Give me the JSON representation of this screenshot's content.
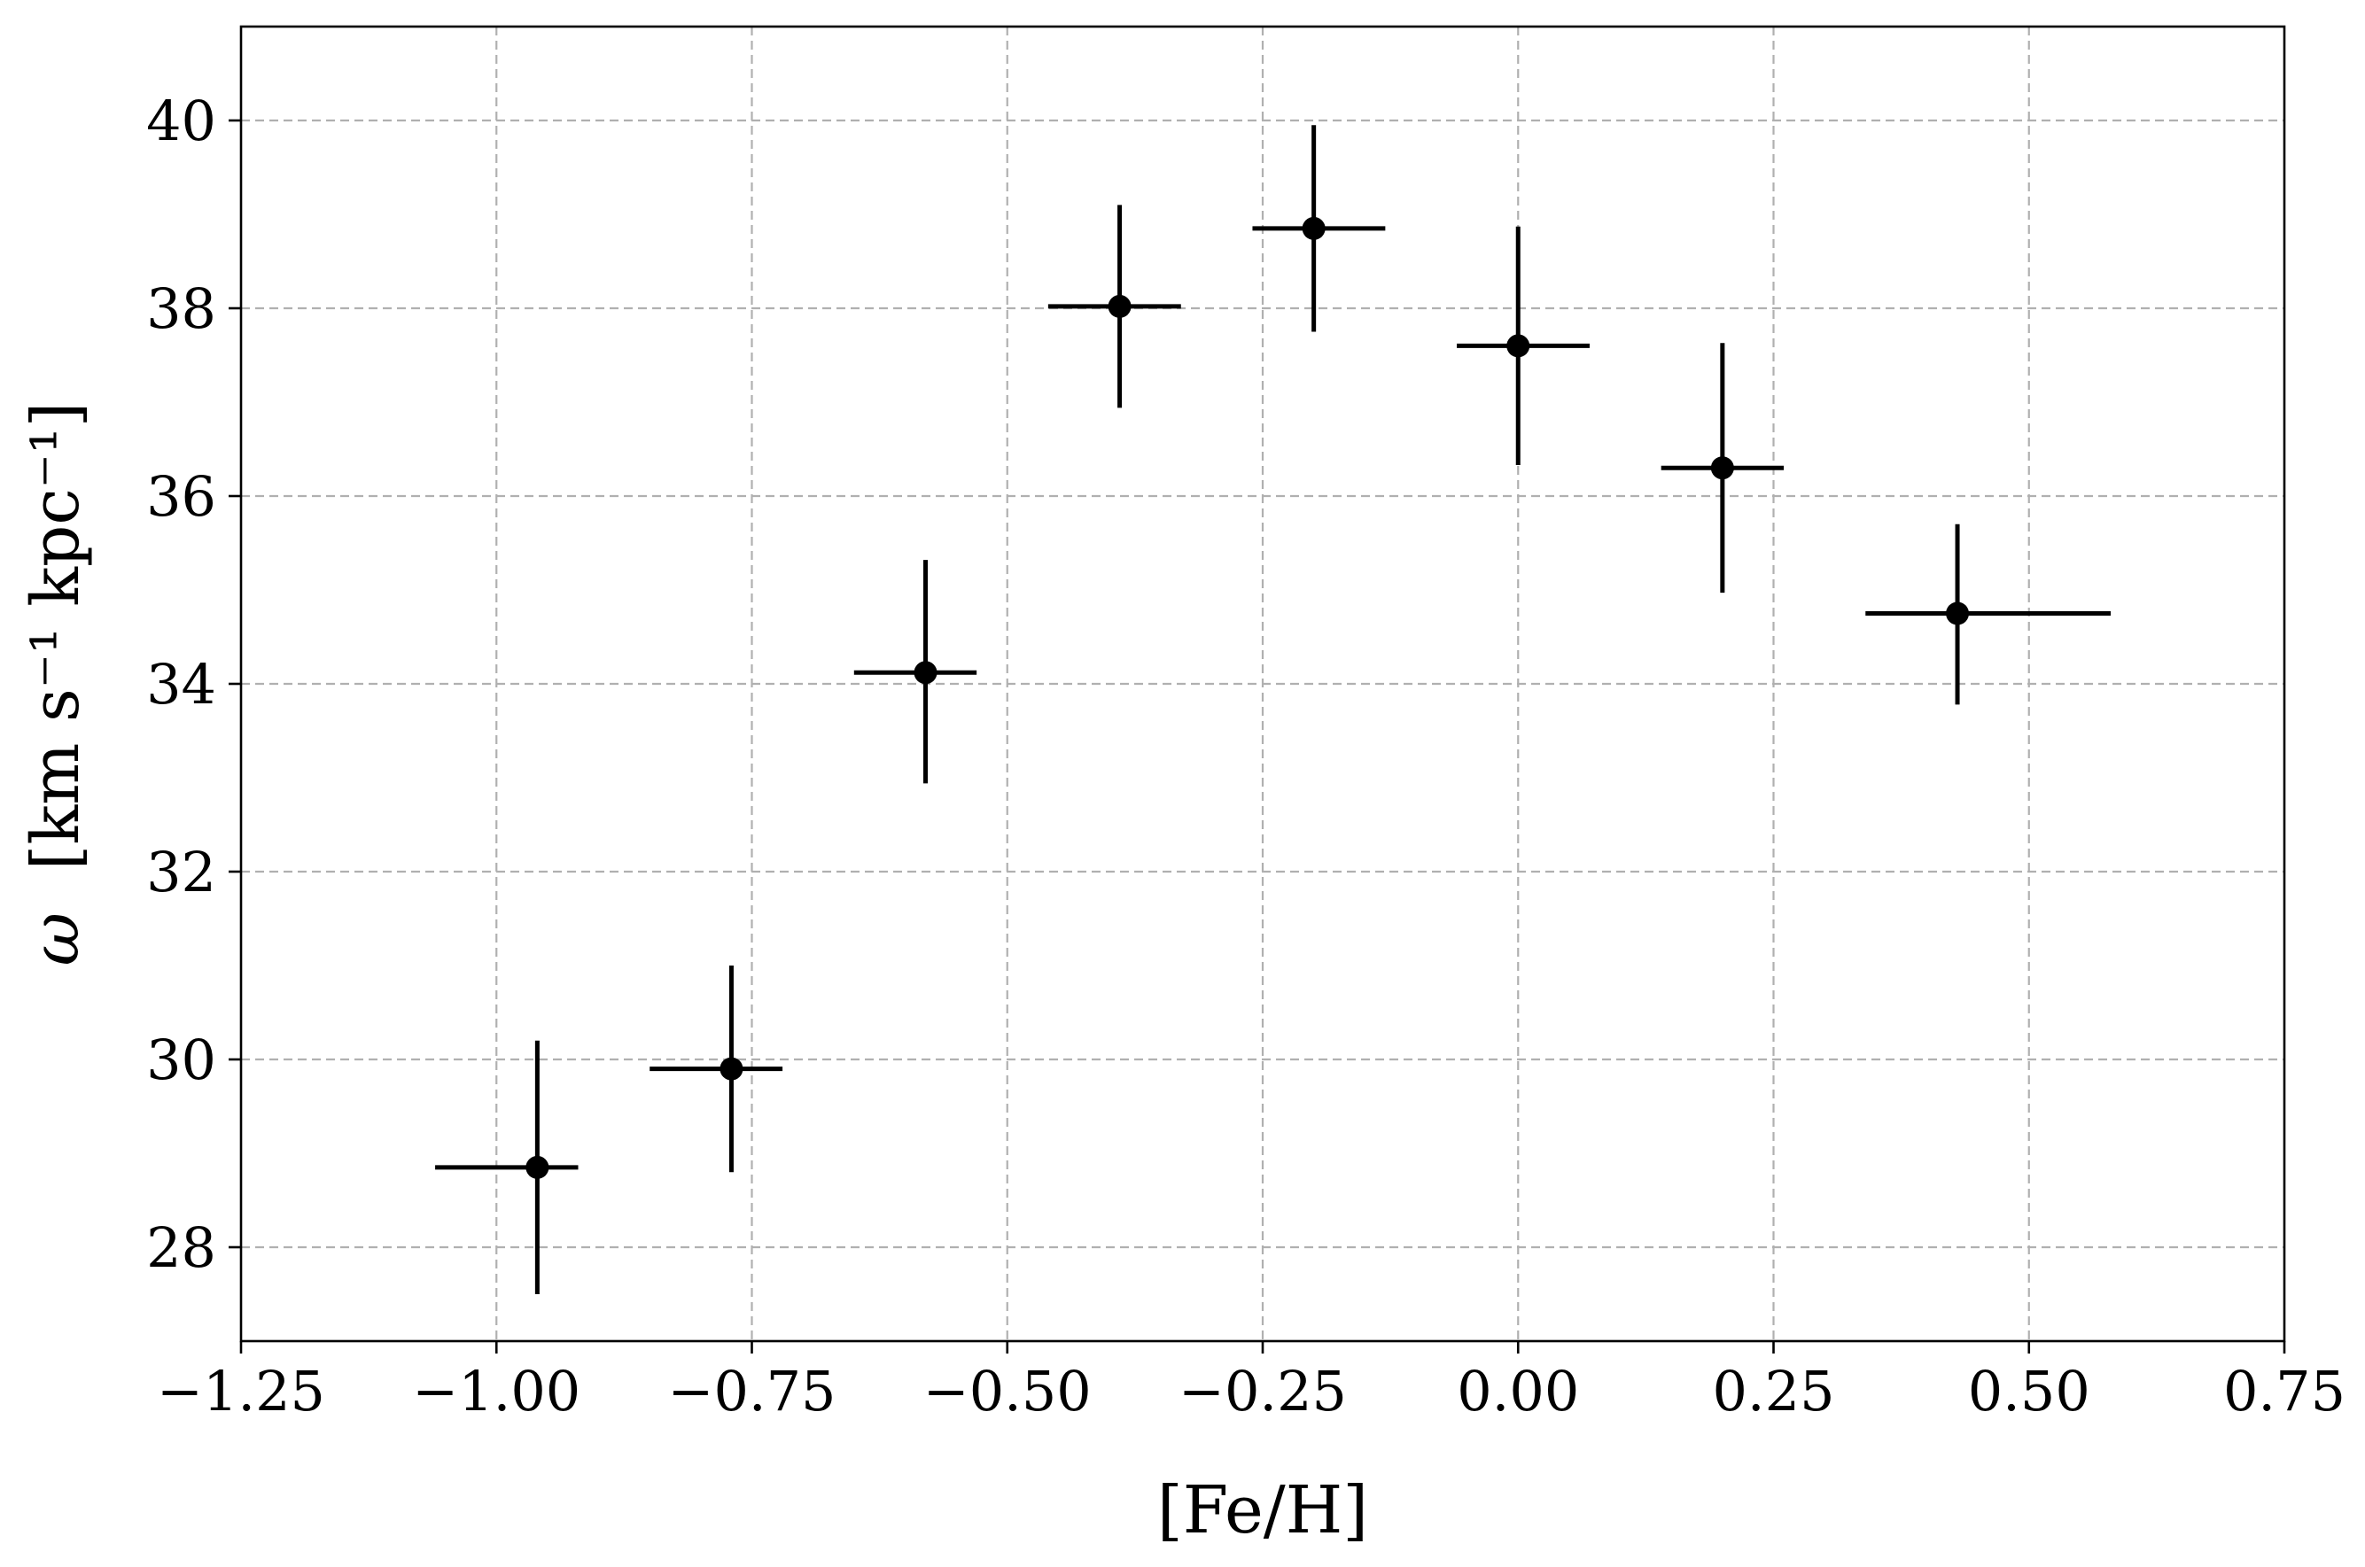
{
  "chart_data": {
    "type": "scatter",
    "xlabel": "[Fe/H]",
    "ylabel_symbol": "ω",
    "ylabel_units": "[km s⁻¹ kpc⁻¹]",
    "xlim": [
      -1.25,
      0.75
    ],
    "ylim": [
      27.0,
      41.0
    ],
    "grid": true,
    "xticks": [
      -1.25,
      -1.0,
      -0.75,
      -0.5,
      -0.25,
      0.0,
      0.25,
      0.5,
      0.75
    ],
    "xtick_labels": [
      "−1.25",
      "−1.00",
      "−0.75",
      "−0.50",
      "−0.25",
      "0.00",
      "0.25",
      "0.50",
      "0.75"
    ],
    "yticks": [
      28,
      30,
      32,
      34,
      36,
      38,
      40
    ],
    "ytick_labels": [
      "28",
      "30",
      "32",
      "34",
      "36",
      "38",
      "40"
    ],
    "color": "#000000",
    "series": [
      {
        "points": [
          {
            "x": -0.96,
            "y": 28.85,
            "xerr_low": 0.1,
            "xerr_high": 0.04,
            "yerr_low": 1.35,
            "yerr_high": 1.35
          },
          {
            "x": -0.77,
            "y": 29.9,
            "xerr_low": 0.08,
            "xerr_high": 0.05,
            "yerr_low": 1.1,
            "yerr_high": 1.1
          },
          {
            "x": -0.58,
            "y": 34.12,
            "xerr_low": 0.07,
            "xerr_high": 0.05,
            "yerr_low": 1.18,
            "yerr_high": 1.2
          },
          {
            "x": -0.39,
            "y": 38.02,
            "xerr_low": 0.07,
            "xerr_high": 0.06,
            "yerr_low": 1.08,
            "yerr_high": 1.08
          },
          {
            "x": -0.2,
            "y": 38.85,
            "xerr_low": 0.06,
            "xerr_high": 0.07,
            "yerr_low": 1.1,
            "yerr_high": 1.1
          },
          {
            "x": 0.0,
            "y": 37.6,
            "xerr_low": 0.06,
            "xerr_high": 0.07,
            "yerr_low": 1.27,
            "yerr_high": 1.27
          },
          {
            "x": 0.2,
            "y": 36.3,
            "xerr_low": 0.06,
            "xerr_high": 0.06,
            "yerr_low": 1.33,
            "yerr_high": 1.33
          },
          {
            "x": 0.43,
            "y": 34.75,
            "xerr_low": 0.09,
            "xerr_high": 0.15,
            "yerr_low": 0.97,
            "yerr_high": 0.95
          }
        ]
      }
    ]
  }
}
